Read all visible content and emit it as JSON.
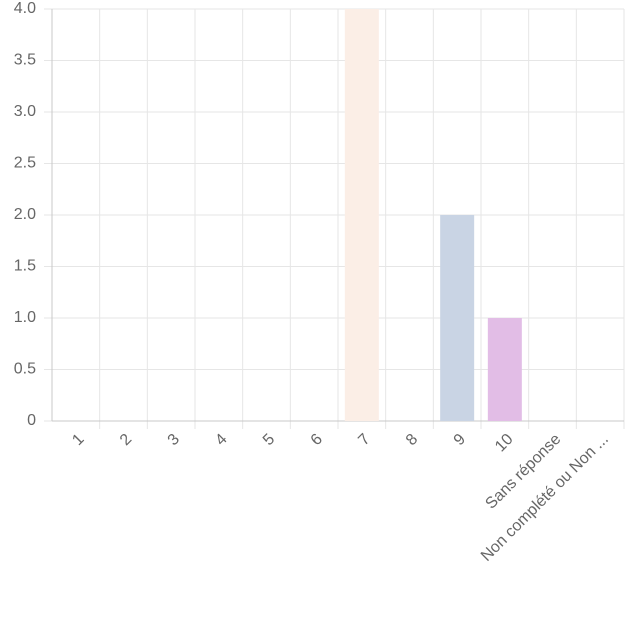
{
  "chart_data": {
    "type": "bar",
    "categories": [
      "1",
      "2",
      "3",
      "4",
      "5",
      "6",
      "7",
      "8",
      "9",
      "10",
      "Sans réponse",
      "Non complété ou Non ..."
    ],
    "values": [
      0,
      0,
      0,
      0,
      0,
      0,
      4,
      0,
      2,
      1,
      0,
      0
    ],
    "colors": [
      null,
      null,
      null,
      null,
      null,
      null,
      "#fbeee6",
      null,
      "#c9d4e4",
      "#e2bde6",
      null,
      null
    ],
    "ylim": [
      0,
      4
    ],
    "yticks": [
      0,
      0.5,
      {
        "value": 1,
        "label": "1.0"
      },
      1.5,
      {
        "value": 2,
        "label": "2.0"
      },
      2.5,
      {
        "value": 3,
        "label": "3.0"
      },
      3.5,
      {
        "value": 4,
        "label": "4.0"
      }
    ],
    "grid": true
  }
}
